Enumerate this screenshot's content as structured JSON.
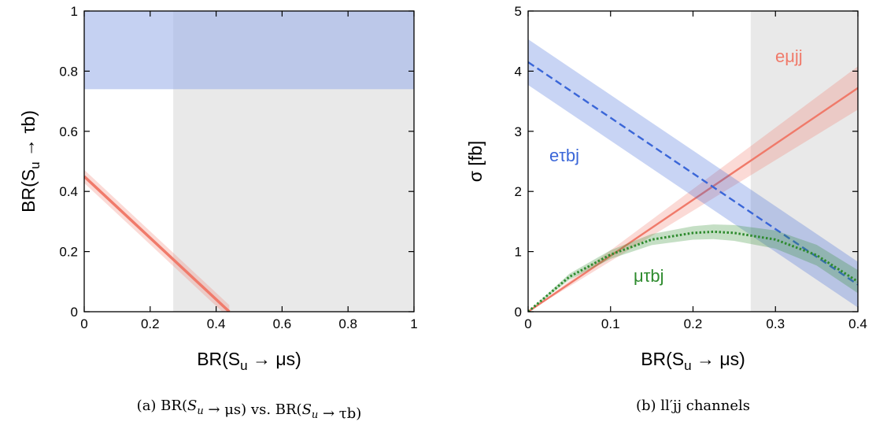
{
  "chart_data": [
    {
      "type": "area",
      "panel": "a",
      "xlabel": "BR(S_u → μs)",
      "ylabel": "BR(S_u → τb)",
      "xlim": [
        0,
        1
      ],
      "ylim": [
        0,
        1
      ],
      "xticks": [
        "0",
        "0.2",
        "0.4",
        "0.6",
        "0.8",
        "1"
      ],
      "yticks": [
        "0",
        "0.2",
        "0.4",
        "0.6",
        "0.8",
        "1"
      ],
      "excluded_x_min": 0.27,
      "excluded_y_min": 0.74,
      "shade_colors": {
        "gray": "#e6e6e6",
        "blue": "#b8c4ee"
      },
      "line": {
        "color": "#f07a6a",
        "x": [
          0,
          0.44
        ],
        "y": [
          0.45,
          0
        ],
        "band_halfwidth": 0.022
      },
      "caption": {
        "label": "(a)",
        "text": "BR(S_u → μs) vs. BR(S_u → τb)"
      }
    },
    {
      "type": "line",
      "panel": "b",
      "xlabel": "BR(S_u → μs)",
      "ylabel": "σ  [fb]",
      "xlim": [
        0,
        0.4
      ],
      "ylim": [
        0,
        5
      ],
      "xticks": [
        "0",
        "0.1",
        "0.2",
        "0.3",
        "0.4"
      ],
      "yticks": [
        "0",
        "1",
        "2",
        "3",
        "4",
        "5"
      ],
      "excluded_x_min": 0.27,
      "series": [
        {
          "name": "eμjj",
          "color": "#f07a6a",
          "style": "solid",
          "x": [
            0,
            0.4
          ],
          "y": [
            0,
            3.72
          ],
          "band_halfwidth": 0.3
        },
        {
          "name": "eτbj",
          "color": "#3a66d8",
          "style": "dashed",
          "x": [
            0,
            0.4
          ],
          "y": [
            4.15,
            0.45
          ],
          "band_halfwidth": 0.38
        },
        {
          "name": "μτbj",
          "color": "#2e8b2e",
          "style": "dotted",
          "x": [
            0,
            0.05,
            0.1,
            0.15,
            0.2,
            0.225,
            0.25,
            0.3,
            0.35,
            0.4
          ],
          "y": [
            0,
            0.58,
            0.95,
            1.2,
            1.31,
            1.33,
            1.31,
            1.2,
            0.94,
            0.5
          ],
          "band_halfwidth": 0.16
        }
      ],
      "caption": {
        "label": "(b)",
        "text": "ll′jj channels"
      }
    }
  ]
}
